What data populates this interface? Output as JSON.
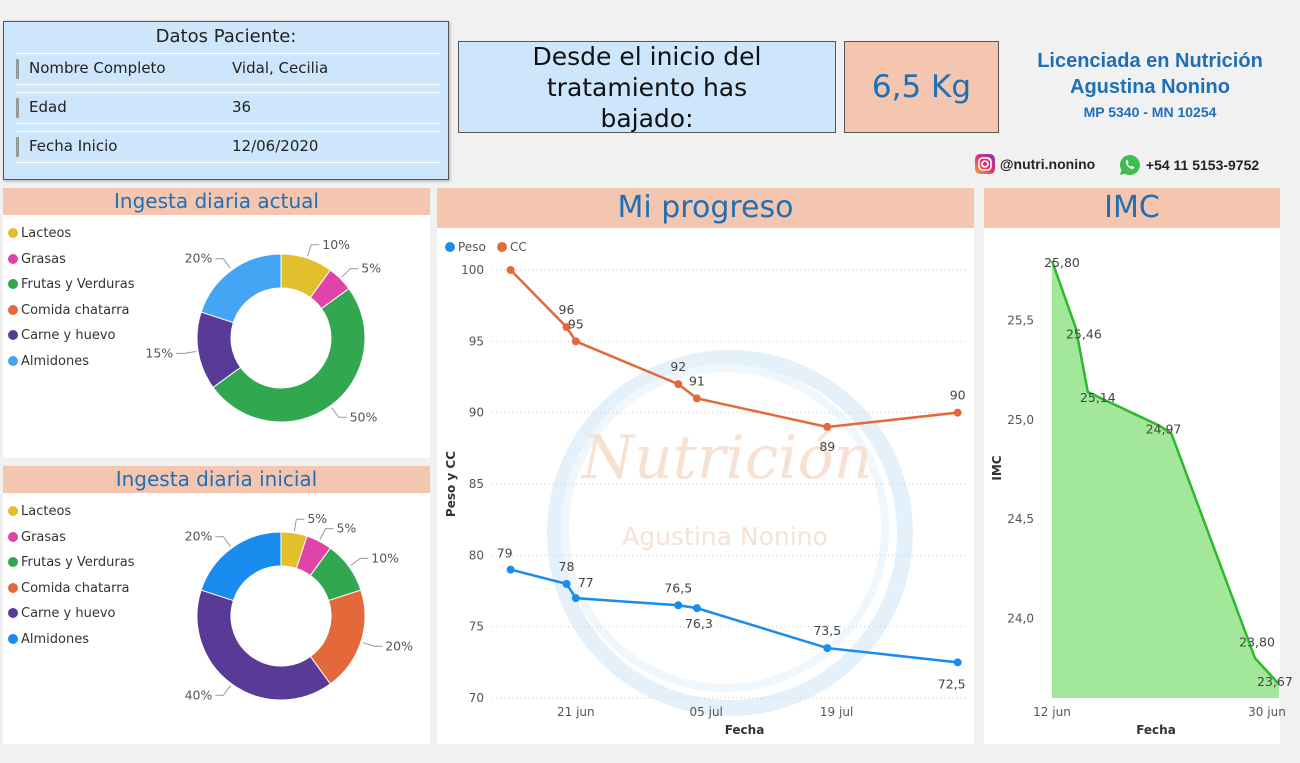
{
  "patient": {
    "title": "Datos Paciente:",
    "rows": [
      {
        "label": "Nombre Completo",
        "value": "Vidal, Cecilia"
      },
      {
        "label": "Edad",
        "value": "36"
      },
      {
        "label": "Fecha Inicio",
        "value": "12/06/2020"
      }
    ]
  },
  "summary": {
    "message": "Desde el inicio del tratamiento has bajado:",
    "kg": "6,5 Kg"
  },
  "brand": {
    "line1": "Licenciada en Nutrición",
    "line2": "Agustina Nonino",
    "line3": "MP 5340 - MN 10254",
    "instagram": "@nutri.nonino",
    "whatsapp": "+54 11 5153-9752",
    "watermark_title": "Nutrición",
    "watermark_name": "Agustina Nonino"
  },
  "colors": {
    "header_bg": "#f4c6b0",
    "card_bg": "#cde6fb",
    "title_blue": "#1f6fb5",
    "peso": "#1a8cf0",
    "cc": "#e3693a",
    "imc": "#2db82d",
    "imc_fill": "#a3e89a"
  },
  "chart_data": [
    {
      "type": "pie",
      "title": "Ingesta diaria actual",
      "categories": [
        "Lacteos",
        "Grasas",
        "Frutas y Verduras",
        "Comida chatarra",
        "Carne y huevo",
        "Almidones"
      ],
      "values": [
        10,
        5,
        50,
        0,
        15,
        20
      ],
      "labels": [
        "10%",
        "5%",
        "50%",
        "",
        "15%",
        "20%"
      ],
      "colors": [
        "#e2c02c",
        "#e044a8",
        "#31a84f",
        "#e3693a",
        "#5a3a97",
        "#45a5f5"
      ]
    },
    {
      "type": "pie",
      "title": "Ingesta diaria inicial",
      "categories": [
        "Lacteos",
        "Grasas",
        "Frutas y Verduras",
        "Comida chatarra",
        "Carne y huevo",
        "Almidones"
      ],
      "values": [
        5,
        5,
        10,
        20,
        40,
        20
      ],
      "labels": [
        "5%",
        "5%",
        "10%",
        "20%",
        "40%",
        "20%"
      ],
      "colors": [
        "#e2c02c",
        "#e044a8",
        "#31a84f",
        "#e3693a",
        "#5a3a97",
        "#1a8cf0"
      ]
    },
    {
      "type": "line",
      "title": "Mi progreso",
      "xlabel": "Fecha",
      "ylabel": "Peso y CC",
      "ylim": [
        70,
        100
      ],
      "yticks": [
        "70",
        "75",
        "80",
        "85",
        "90",
        "95",
        "100"
      ],
      "xticks": [
        {
          "x": "2020-06-21",
          "label": "21 jun"
        },
        {
          "x": "2020-07-05",
          "label": "05 jul"
        },
        {
          "x": "2020-07-19",
          "label": "19 jul"
        }
      ],
      "xlim": [
        "2020-06-12",
        "2020-08-02"
      ],
      "series": [
        {
          "name": "Peso",
          "x": [
            "2020-06-14",
            "2020-06-20",
            "2020-06-21",
            "2020-07-02",
            "2020-07-04",
            "2020-07-18",
            "2020-08-01"
          ],
          "values": [
            79,
            78,
            77,
            76.5,
            76.3,
            73.5,
            72.5
          ],
          "labels": [
            "79",
            "78",
            "77",
            "76,5",
            "76,3",
            "73,5",
            "72,5"
          ]
        },
        {
          "name": "CC",
          "x": [
            "2020-06-14",
            "2020-06-20",
            "2020-06-21",
            "2020-07-02",
            "2020-07-04",
            "2020-07-18",
            "2020-08-01"
          ],
          "values": [
            100,
            96,
            95,
            92,
            91,
            89,
            90
          ],
          "labels": [
            "",
            "96",
            "95",
            "92",
            "91",
            "89",
            "90"
          ]
        }
      ]
    },
    {
      "type": "area",
      "title": "IMC",
      "xlabel": "Fecha",
      "ylabel": "IMC",
      "ylim": [
        23.6,
        25.9
      ],
      "yticks": [
        "24,0",
        "24,5",
        "25,0",
        "25,5"
      ],
      "xticks": [
        {
          "x": "2020-06-12",
          "label": "12 jun"
        },
        {
          "x": "2020-06-30",
          "label": "30 jun"
        }
      ],
      "series": [
        {
          "name": "IMC",
          "x": [
            "2020-06-12",
            "2020-06-14",
            "2020-06-15",
            "2020-06-21",
            "2020-06-22",
            "2020-06-29",
            "2020-07-01"
          ],
          "values": [
            25.8,
            25.46,
            25.14,
            24.97,
            24.93,
            23.8,
            23.67
          ],
          "labels": [
            "25,80",
            "25,46",
            "25,14",
            "24,97",
            "",
            "23,80",
            "23,67"
          ]
        }
      ]
    }
  ]
}
